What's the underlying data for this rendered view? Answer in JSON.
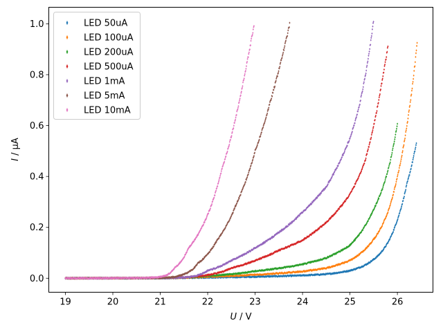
{
  "chart_data": {
    "type": "scatter",
    "title": "",
    "xlabel": {
      "var": "U",
      "unit": " / V"
    },
    "ylabel": {
      "var": "I",
      "unit": " / µA"
    },
    "xlim": [
      18.65,
      26.75
    ],
    "ylim": [
      -0.055,
      1.065
    ],
    "xticks": [
      19,
      20,
      21,
      22,
      23,
      24,
      25,
      26
    ],
    "yticks": [
      0.0,
      0.2,
      0.4,
      0.6,
      0.8,
      1.0
    ],
    "ytick_labels": [
      "0.0",
      "0.2",
      "0.4",
      "0.6",
      "0.8",
      "1.0"
    ],
    "grid": false,
    "legend_position": "upper-left",
    "series": [
      {
        "name": "LED 50uA",
        "color": "#1f77b4",
        "x_start": 19.0,
        "x_end": 26.4,
        "points": [
          [
            19.0,
            0.0
          ],
          [
            21.0,
            0.0
          ],
          [
            22.0,
            0.003
          ],
          [
            23.0,
            0.006
          ],
          [
            24.0,
            0.011
          ],
          [
            24.5,
            0.016
          ],
          [
            25.0,
            0.03
          ],
          [
            25.3,
            0.05
          ],
          [
            25.6,
            0.09
          ],
          [
            25.8,
            0.14
          ],
          [
            26.0,
            0.23
          ],
          [
            26.2,
            0.37
          ],
          [
            26.4,
            0.53
          ]
        ]
      },
      {
        "name": "LED 100uA",
        "color": "#ff7f0e",
        "x_start": 19.0,
        "x_end": 26.42,
        "points": [
          [
            19.0,
            0.0
          ],
          [
            21.0,
            0.001
          ],
          [
            22.0,
            0.006
          ],
          [
            23.0,
            0.014
          ],
          [
            24.0,
            0.027
          ],
          [
            24.5,
            0.04
          ],
          [
            25.0,
            0.07
          ],
          [
            25.3,
            0.11
          ],
          [
            25.6,
            0.18
          ],
          [
            25.8,
            0.26
          ],
          [
            26.0,
            0.4
          ],
          [
            26.2,
            0.6
          ],
          [
            26.42,
            0.93
          ]
        ]
      },
      {
        "name": "LED 200uA",
        "color": "#2ca02c",
        "x_start": 19.0,
        "x_end": 26.0,
        "points": [
          [
            19.0,
            0.0
          ],
          [
            21.0,
            0.001
          ],
          [
            22.0,
            0.009
          ],
          [
            23.0,
            0.028
          ],
          [
            24.0,
            0.055
          ],
          [
            24.5,
            0.08
          ],
          [
            25.0,
            0.13
          ],
          [
            25.3,
            0.2
          ],
          [
            25.5,
            0.27
          ],
          [
            25.7,
            0.36
          ],
          [
            25.85,
            0.46
          ],
          [
            26.0,
            0.61
          ]
        ]
      },
      {
        "name": "LED 500uA",
        "color": "#d62728",
        "x_start": 19.0,
        "x_end": 25.8,
        "points": [
          [
            19.0,
            0.0
          ],
          [
            21.0,
            0.001
          ],
          [
            21.8,
            0.008
          ],
          [
            22.5,
            0.04
          ],
          [
            23.0,
            0.07
          ],
          [
            23.5,
            0.11
          ],
          [
            24.0,
            0.15
          ],
          [
            24.5,
            0.22
          ],
          [
            25.0,
            0.33
          ],
          [
            25.3,
            0.45
          ],
          [
            25.5,
            0.6
          ],
          [
            25.7,
            0.8
          ],
          [
            25.8,
            0.91
          ]
        ]
      },
      {
        "name": "LED 1mA",
        "color": "#9467bd",
        "x_start": 19.0,
        "x_end": 25.5,
        "points": [
          [
            19.0,
            0.0
          ],
          [
            21.0,
            0.001
          ],
          [
            21.6,
            0.005
          ],
          [
            22.0,
            0.03
          ],
          [
            22.5,
            0.07
          ],
          [
            23.0,
            0.12
          ],
          [
            23.5,
            0.18
          ],
          [
            24.0,
            0.26
          ],
          [
            24.5,
            0.36
          ],
          [
            25.0,
            0.55
          ],
          [
            25.2,
            0.68
          ],
          [
            25.4,
            0.88
          ],
          [
            25.5,
            1.02
          ]
        ]
      },
      {
        "name": "LED 5mA",
        "color": "#8c564b",
        "x_start": 19.0,
        "x_end": 23.73,
        "points": [
          [
            19.0,
            0.0
          ],
          [
            21.0,
            0.001
          ],
          [
            21.4,
            0.01
          ],
          [
            21.8,
            0.06
          ],
          [
            22.2,
            0.15
          ],
          [
            22.6,
            0.29
          ],
          [
            23.0,
            0.5
          ],
          [
            23.3,
            0.68
          ],
          [
            23.5,
            0.82
          ],
          [
            23.73,
            1.0
          ]
        ]
      },
      {
        "name": "LED 10mA",
        "color": "#e377c2",
        "x_start": 19.0,
        "x_end": 22.98,
        "points": [
          [
            19.0,
            0.0
          ],
          [
            20.5,
            0.001
          ],
          [
            21.0,
            0.005
          ],
          [
            21.3,
            0.04
          ],
          [
            21.6,
            0.12
          ],
          [
            22.0,
            0.25
          ],
          [
            22.3,
            0.43
          ],
          [
            22.6,
            0.64
          ],
          [
            22.8,
            0.82
          ],
          [
            22.98,
            1.0
          ]
        ]
      }
    ]
  }
}
